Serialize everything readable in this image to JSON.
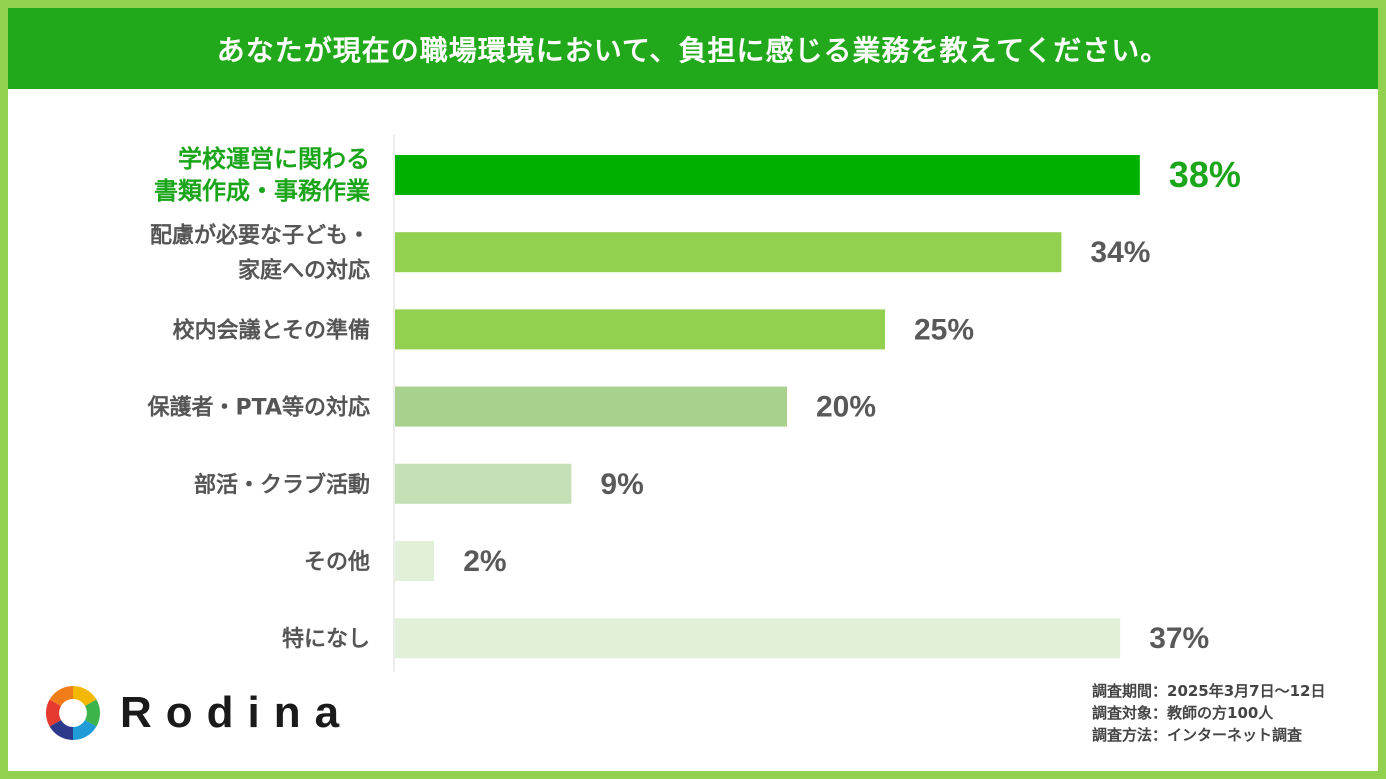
{
  "title": "あなたが現在の職場環境において、負担に感じる業務を教えてください。",
  "colors": {
    "header": "#22a91b",
    "border": "#92d050",
    "highlight_text": "#1aa51a",
    "bars": [
      "#00b000",
      "#92d050",
      "#92d050",
      "#a9d18e",
      "#c5e0b4",
      "#e2f0d9",
      "#e2f0d9"
    ]
  },
  "chart_data": {
    "type": "bar",
    "orientation": "horizontal",
    "categories": [
      [
        "学校運営に関わる",
        "書類作成・事務作業"
      ],
      [
        "配慮が必要な子ども・",
        "家庭への対応"
      ],
      [
        "校内会議とその準備"
      ],
      [
        "保護者・PTA等の対応"
      ],
      [
        "部活・クラブ活動"
      ],
      [
        "その他"
      ],
      [
        "特になし"
      ]
    ],
    "values": [
      38,
      34,
      25,
      20,
      9,
      2,
      37
    ],
    "value_labels": [
      "38%",
      "34%",
      "25%",
      "20%",
      "9%",
      "2%",
      "37%"
    ],
    "highlight_index": 0,
    "unit": "%",
    "xlim": [
      0,
      100
    ],
    "grid": false,
    "legend": "none"
  },
  "logo": {
    "text": "Rodina",
    "icon": "rodina-logo-icon"
  },
  "survey_notes": [
    "調査期間：2025年3月7日～12日",
    "調査対象：教師の方100人",
    "調査方法：インターネット調査"
  ]
}
